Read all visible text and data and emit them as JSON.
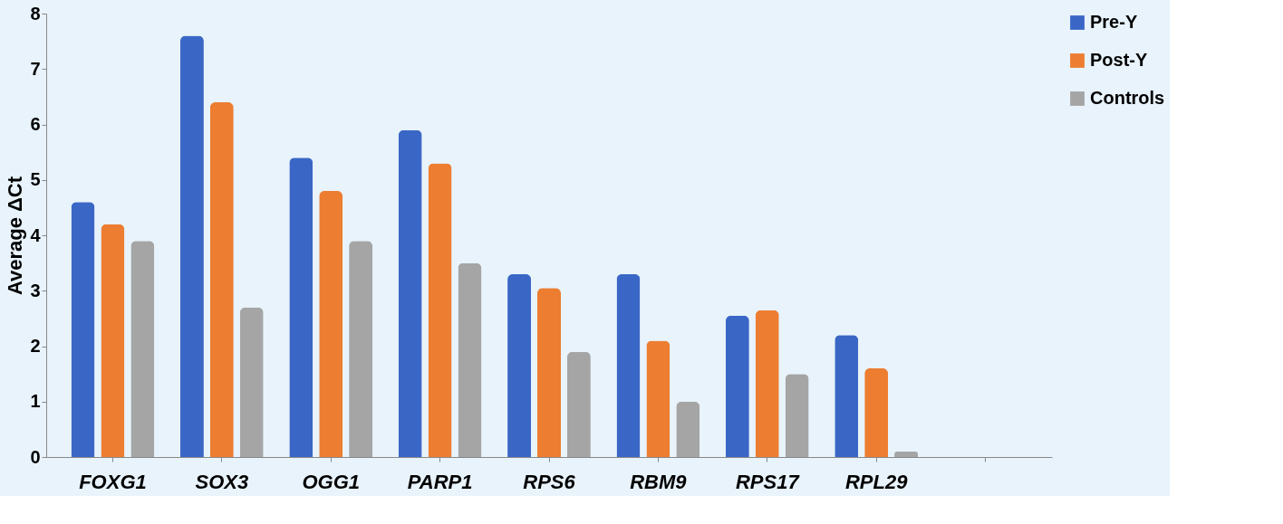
{
  "chart_data": {
    "type": "bar",
    "ylabel": "Average ΔCt",
    "categories": [
      "FOXG1",
      "SOX3",
      "OGG1",
      "PARP1",
      "RPS6",
      "RBM9",
      "RPS17",
      "RPL29",
      null
    ],
    "series": [
      {
        "name": "Pre-Y",
        "color": "#3a67c6",
        "values": [
          4.6,
          7.6,
          5.4,
          5.9,
          3.3,
          3.3,
          2.55,
          2.2,
          null
        ]
      },
      {
        "name": "Post-Y",
        "color": "#ed7d31",
        "values": [
          4.2,
          6.4,
          4.8,
          5.3,
          3.05,
          2.1,
          2.65,
          1.6,
          null
        ]
      },
      {
        "name": "Controls",
        "color": "#a5a5a5",
        "values": [
          3.9,
          2.7,
          3.9,
          3.5,
          1.9,
          1.0,
          1.5,
          0.1,
          null
        ]
      }
    ],
    "ylim": [
      0,
      8
    ],
    "yticks": [
      0,
      1,
      2,
      3,
      4,
      5,
      6,
      7,
      8
    ],
    "grid": false,
    "legend": "right"
  }
}
